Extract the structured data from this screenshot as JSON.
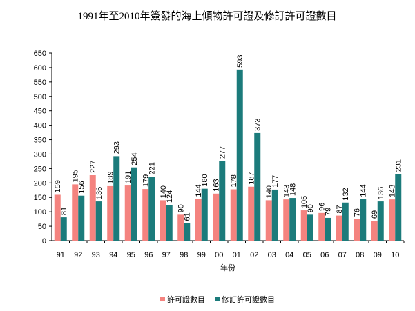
{
  "chart_data": {
    "type": "bar",
    "title": "1991年至2010年簽發的海上傾物許可證及修訂許可證數目",
    "x_label": "年份",
    "categories": [
      "91",
      "92",
      "93",
      "94",
      "95",
      "96",
      "97",
      "98",
      "99",
      "00",
      "01",
      "02",
      "03",
      "04",
      "05",
      "06",
      "07",
      "08",
      "09",
      "10"
    ],
    "series": [
      {
        "name": "許可證數目",
        "color": "#f4837f",
        "values": [
          159,
          195,
          227,
          189,
          191,
          179,
          140,
          90,
          144,
          163,
          178,
          187,
          140,
          143,
          105,
          96,
          87,
          76,
          69,
          143
        ]
      },
      {
        "name": "修訂許可證數目",
        "color": "#1b7b7b",
        "values": [
          81,
          156,
          136,
          293,
          254,
          221,
          124,
          61,
          180,
          277,
          593,
          373,
          177,
          148,
          90,
          79,
          132,
          144,
          136,
          231
        ]
      }
    ],
    "ylim": [
      0,
      650
    ],
    "yticks": [
      0,
      50,
      100,
      150,
      200,
      250,
      300,
      350,
      400,
      450,
      500,
      550,
      600,
      650
    ],
    "legend": "bottom"
  }
}
